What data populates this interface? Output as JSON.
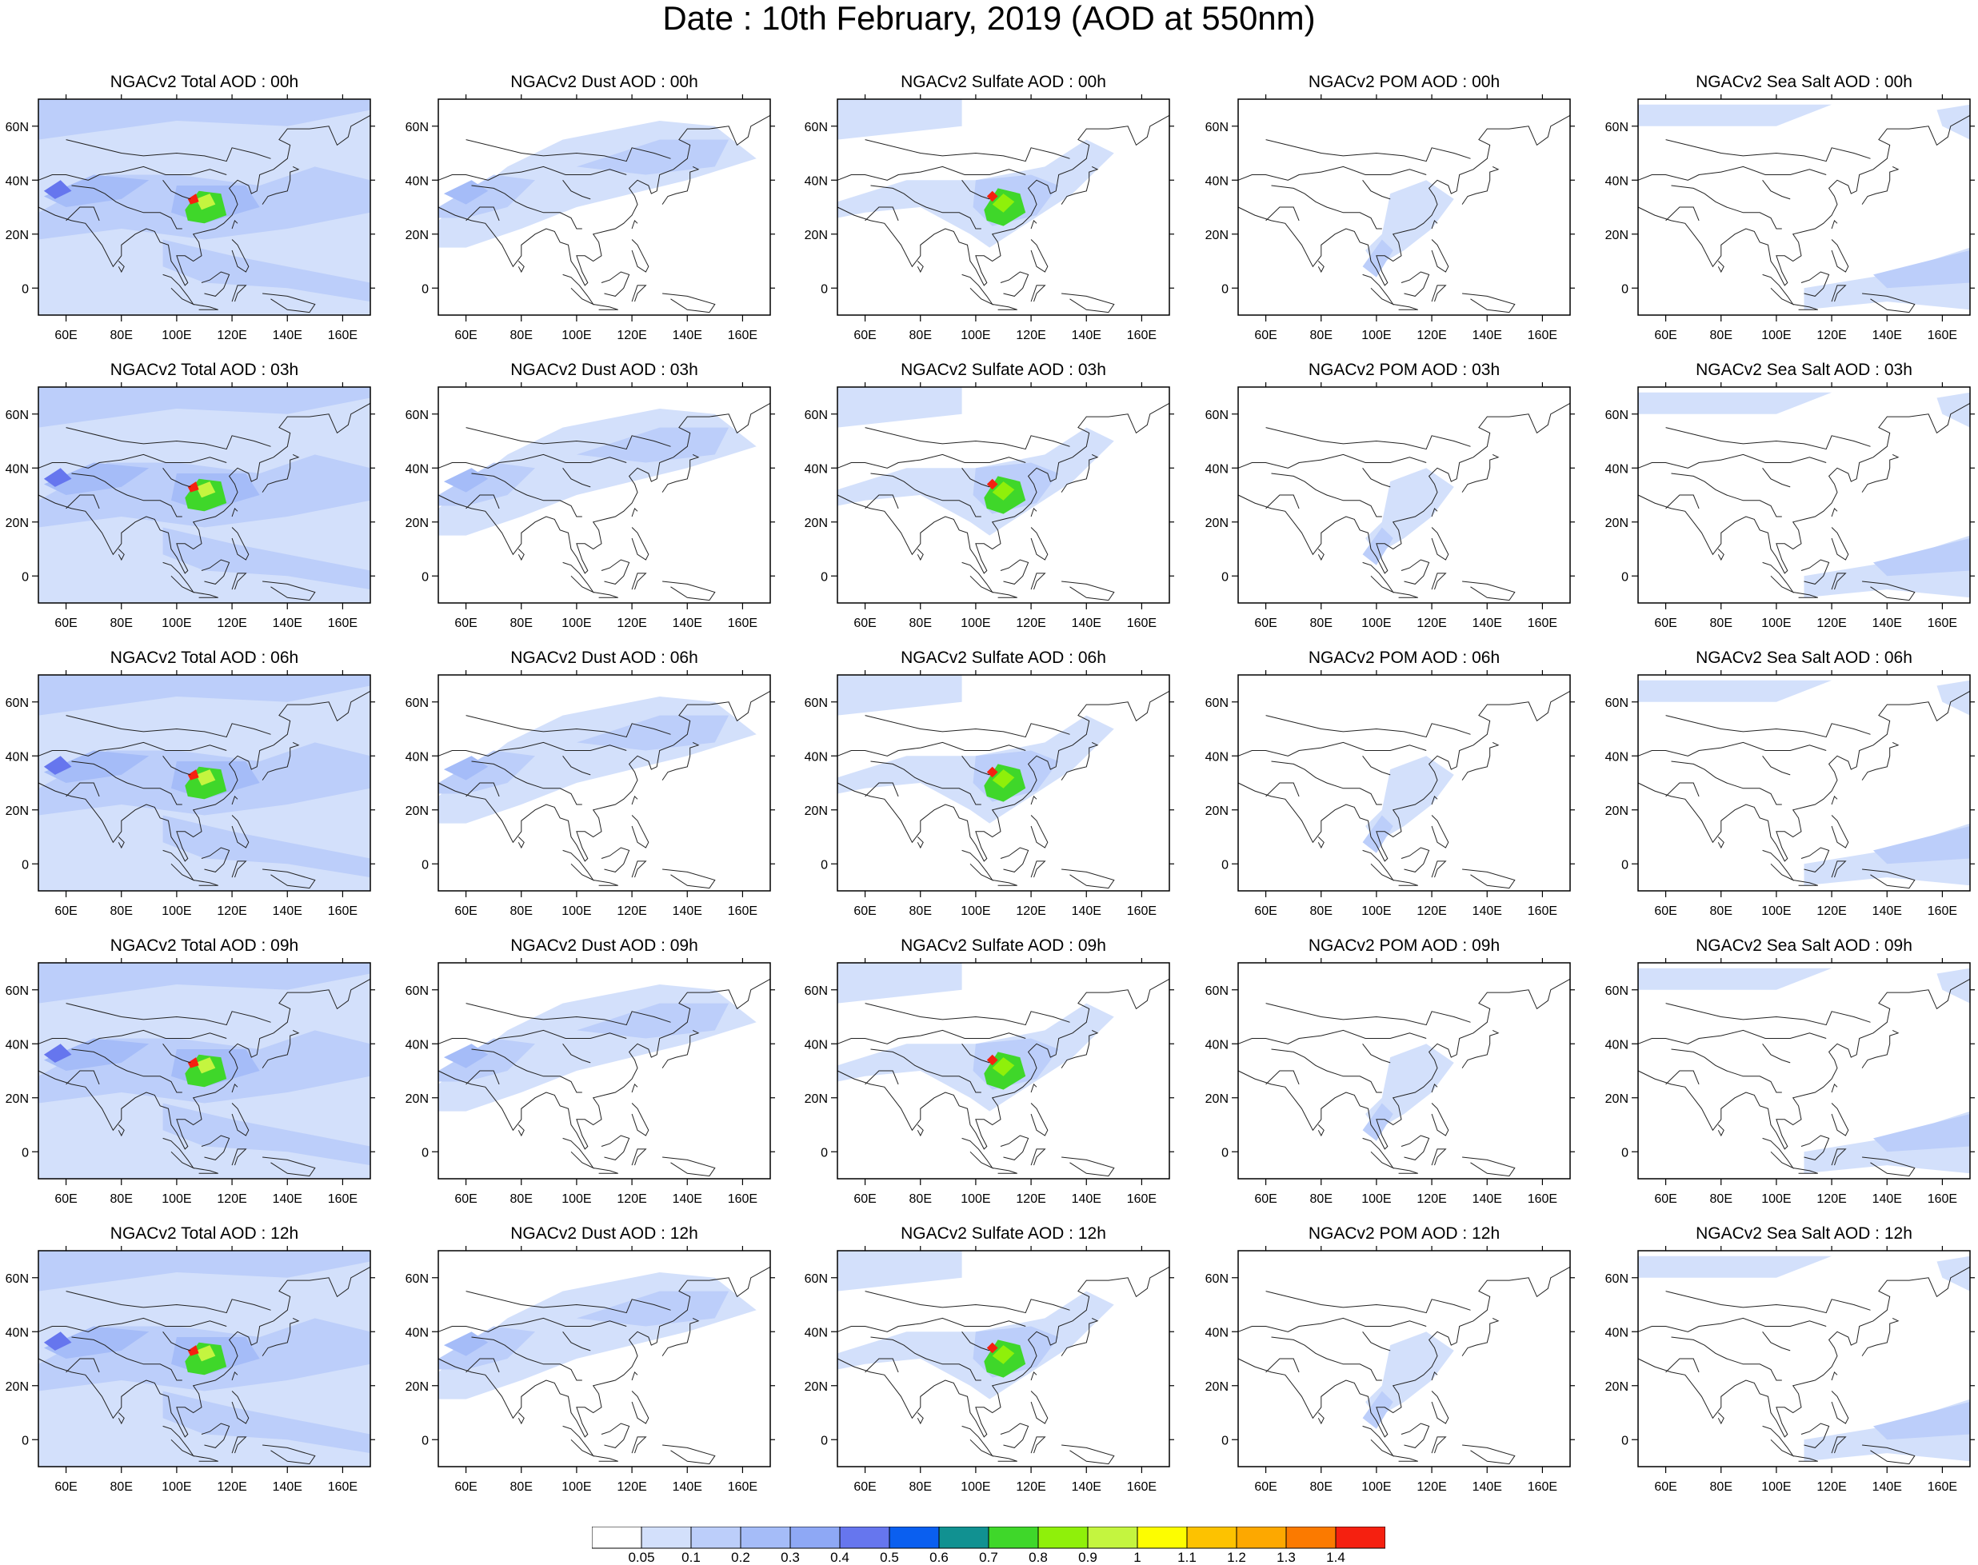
{
  "title": "Date : 10th February, 2019 (AOD at 550nm)",
  "lon_ticks": [
    "60E",
    "80E",
    "100E",
    "120E",
    "140E",
    "160E"
  ],
  "lat_ticks": [
    "60N",
    "40N",
    "20N",
    "0"
  ],
  "panels": [
    {
      "title": "NGACv2 Total AOD : 00h",
      "species": "total",
      "hour": "00h"
    },
    {
      "title": "NGACv2 Dust AOD : 00h",
      "species": "dust",
      "hour": "00h"
    },
    {
      "title": "NGACv2 Sulfate AOD : 00h",
      "species": "sulfate",
      "hour": "00h"
    },
    {
      "title": "NGACv2 POM AOD : 00h",
      "species": "pom",
      "hour": "00h"
    },
    {
      "title": "NGACv2 Sea Salt AOD : 00h",
      "species": "seasalt",
      "hour": "00h"
    },
    {
      "title": "NGACv2 Total AOD : 03h",
      "species": "total",
      "hour": "03h"
    },
    {
      "title": "NGACv2 Dust AOD : 03h",
      "species": "dust",
      "hour": "03h"
    },
    {
      "title": "NGACv2 Sulfate AOD : 03h",
      "species": "sulfate",
      "hour": "03h"
    },
    {
      "title": "NGACv2 POM AOD : 03h",
      "species": "pom",
      "hour": "03h"
    },
    {
      "title": "NGACv2 Sea Salt AOD : 03h",
      "species": "seasalt",
      "hour": "03h"
    },
    {
      "title": "NGACv2 Total AOD : 06h",
      "species": "total",
      "hour": "06h"
    },
    {
      "title": "NGACv2 Dust AOD : 06h",
      "species": "dust",
      "hour": "06h"
    },
    {
      "title": "NGACv2 Sulfate AOD : 06h",
      "species": "sulfate",
      "hour": "06h"
    },
    {
      "title": "NGACv2 POM AOD : 06h",
      "species": "pom",
      "hour": "06h"
    },
    {
      "title": "NGACv2 Sea Salt AOD : 06h",
      "species": "seasalt",
      "hour": "06h"
    },
    {
      "title": "NGACv2 Total AOD : 09h",
      "species": "total",
      "hour": "09h"
    },
    {
      "title": "NGACv2 Dust AOD : 09h",
      "species": "dust",
      "hour": "09h"
    },
    {
      "title": "NGACv2 Sulfate AOD : 09h",
      "species": "sulfate",
      "hour": "09h"
    },
    {
      "title": "NGACv2 POM AOD : 09h",
      "species": "pom",
      "hour": "09h"
    },
    {
      "title": "NGACv2 Sea Salt  AOD : 09h",
      "species": "seasalt",
      "hour": "09h"
    },
    {
      "title": "NGACv2 Total AOD  : 12h",
      "species": "total",
      "hour": "12h"
    },
    {
      "title": "NGACv2 Dust AOD : 12h",
      "species": "dust",
      "hour": "12h"
    },
    {
      "title": "NGACv2 Sulfate AOD : 12h",
      "species": "sulfate",
      "hour": "12h"
    },
    {
      "title": "NGACv2 POM  AOD : 12h",
      "species": "pom",
      "hour": "12h"
    },
    {
      "title": "NGACv2 Sea Salt  AOD : 12h",
      "species": "seasalt",
      "hour": "12h"
    }
  ],
  "colorbar": {
    "labels": [
      "0.05",
      "0.1",
      "0.2",
      "0.3",
      "0.4",
      "0.5",
      "0.6",
      "0.7",
      "0.8",
      "0.9",
      "1",
      "1.1",
      "1.2",
      "1.3",
      "1.4"
    ],
    "colors": [
      "#ffffff",
      "#d3e0fb",
      "#bccefa",
      "#a5bcf8",
      "#8ea8f5",
      "#6676ee",
      "#0a5ff0",
      "#119191",
      "#3fd72a",
      "#8ff00a",
      "#c4f53f",
      "#fdfd00",
      "#fdc200",
      "#fda800",
      "#fb7a00",
      "#f52010"
    ]
  }
}
